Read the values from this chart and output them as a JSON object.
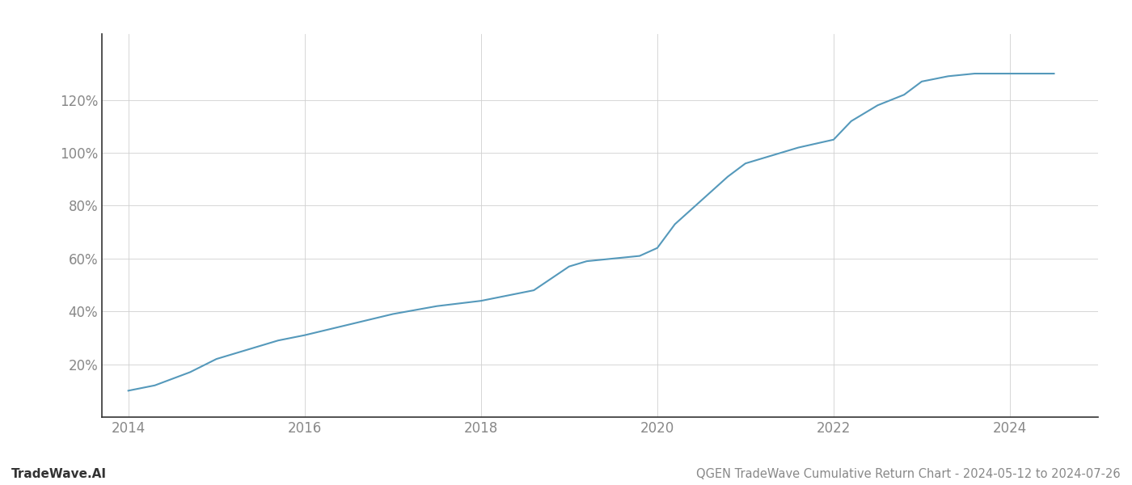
{
  "title": "QGEN TradeWave Cumulative Return Chart - 2024-05-12 to 2024-07-26",
  "watermark": "TradeWave.AI",
  "line_color": "#5599bb",
  "background_color": "#ffffff",
  "grid_color": "#d0d0d0",
  "x_years": [
    2014.0,
    2014.3,
    2014.7,
    2015.0,
    2015.3,
    2015.7,
    2016.0,
    2016.5,
    2017.0,
    2017.5,
    2018.0,
    2018.3,
    2018.6,
    2019.0,
    2019.2,
    2019.5,
    2019.8,
    2020.0,
    2020.2,
    2020.5,
    2020.8,
    2021.0,
    2021.3,
    2021.6,
    2022.0,
    2022.2,
    2022.5,
    2022.8,
    2023.0,
    2023.3,
    2023.6,
    2024.0,
    2024.5
  ],
  "y_values": [
    10,
    12,
    17,
    22,
    25,
    29,
    31,
    35,
    39,
    42,
    44,
    46,
    48,
    57,
    59,
    60,
    61,
    64,
    73,
    82,
    91,
    96,
    99,
    102,
    105,
    112,
    118,
    122,
    127,
    129,
    130,
    130,
    130
  ],
  "xlim": [
    2013.7,
    2025.0
  ],
  "ylim": [
    0,
    145
  ],
  "xticks": [
    2014,
    2016,
    2018,
    2020,
    2022,
    2024
  ],
  "yticks": [
    20,
    40,
    60,
    80,
    100,
    120
  ],
  "line_width": 1.5,
  "title_fontsize": 10.5,
  "tick_fontsize": 12,
  "watermark_fontsize": 11
}
